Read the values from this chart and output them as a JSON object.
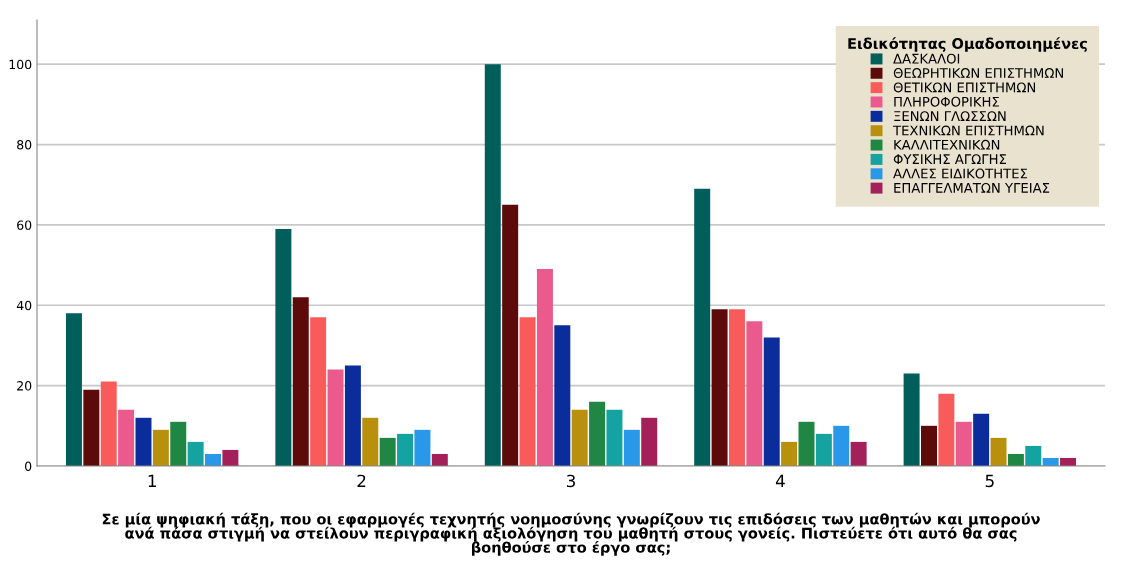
{
  "chart_data": {
    "type": "bar",
    "xlabel": "Σε μία ψηφιακή τάξη, που οι εφαρμογές τεχνητής νοημοσύνης γνωρίζουν τις επιδόσεις των μαθητών και μπορούν\nανά πάσα στιγμή να στείλουν περιγραφική αξιολόγηση του μαθητή στους γονείς. Πιστεύετε ότι αυτό θα σας\nβοηθούσε στο έργο σας;",
    "legend_title": "Ειδικότητας Ομαδοποιημένες",
    "categories": [
      "1",
      "2",
      "3",
      "4",
      "5"
    ],
    "series": [
      {
        "name": "ΔΑΣΚΑΛΟΙ",
        "color": "#005f5a",
        "values": [
          38,
          59,
          100,
          69,
          23
        ]
      },
      {
        "name": "ΘΕΩΡΗΤΙΚΩΝ ΕΠΙΣΤΗΜΩΝ",
        "color": "#5c0a0a",
        "values": [
          19,
          42,
          65,
          39,
          10
        ]
      },
      {
        "name": "ΘΕΤΙΚΩΝ ΕΠΙΣΤΗΜΩΝ",
        "color": "#f95b5b",
        "values": [
          21,
          37,
          37,
          39,
          18
        ]
      },
      {
        "name": "ΠΛΗΡΟΦΟΡΙΚΗΣ",
        "color": "#eb5a8c",
        "values": [
          14,
          24,
          49,
          36,
          11
        ]
      },
      {
        "name": "ΞΕΝΩΝ ΓΛΩΣΣΩΝ",
        "color": "#0a2d9b",
        "values": [
          12,
          25,
          35,
          32,
          13
        ]
      },
      {
        "name": "ΤΕΧΝΙΚΩΝ ΕΠΙΣΤΗΜΩΝ",
        "color": "#b8900e",
        "values": [
          9,
          12,
          14,
          6,
          7
        ]
      },
      {
        "name": "ΚΑΛΛΙΤΕΧΝΙΚΩΝ",
        "color": "#1f8743",
        "values": [
          11,
          7,
          16,
          11,
          3
        ]
      },
      {
        "name": "ΦΥΣΙΚΗΣ ΑΓΩΓΗΣ",
        "color": "#14a3a0",
        "values": [
          6,
          8,
          14,
          8,
          5
        ]
      },
      {
        "name": "ΑΛΛΕΣ ΕΙΔΙΚΟΤΗΤΕΣ",
        "color": "#2a98e8",
        "values": [
          3,
          9,
          9,
          10,
          2
        ]
      },
      {
        "name": "ΕΠΑΓΓΕΛΜΑΤΩΝ ΥΓΕΙΑΣ",
        "color": "#a3205a",
        "values": [
          4,
          3,
          12,
          6,
          2
        ]
      }
    ],
    "ylim": [
      0,
      111
    ],
    "yticks": [
      0,
      20,
      40,
      60,
      80,
      100
    ],
    "grid": "y",
    "legend": "top right"
  }
}
